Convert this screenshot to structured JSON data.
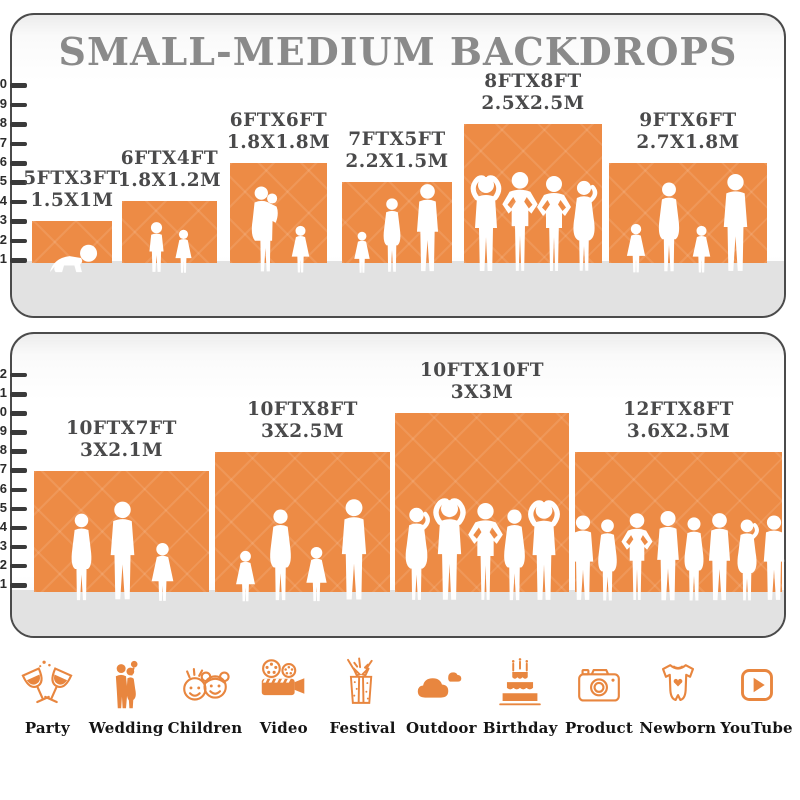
{
  "title": "SMALL-MEDIUM BACKDROPS",
  "colors": {
    "backdrop_orange": "#ED8B45",
    "icon_orange": "#E8863F",
    "title_gray": "#8A8A8A",
    "label_gray": "#4A4A4B",
    "floor_gray": "#E2E2E2",
    "ruler_dark": "#3A3A3A"
  },
  "panels": [
    {
      "name": "small-medium-top",
      "ruler_ticks": [
        "10",
        "9",
        "8",
        "7",
        "6",
        "5",
        "4",
        "3",
        "2",
        "1"
      ],
      "backdrops": [
        {
          "size_ft": "5FTX3FT",
          "size_m": "1.5X1M",
          "width_ft": 5,
          "height_ft": 3,
          "people": [
            "baby"
          ]
        },
        {
          "size_ft": "6FTX4FT",
          "size_m": "1.8X1.2M",
          "width_ft": 6,
          "height_ft": 4,
          "people": [
            "boy",
            "girl"
          ]
        },
        {
          "size_ft": "6FTX6FT",
          "size_m": "1.8X1.8M",
          "width_ft": 6,
          "height_ft": 6,
          "people": [
            "woman_carry",
            "girl"
          ]
        },
        {
          "size_ft": "7FTX5FT",
          "size_m": "2.2X1.5M",
          "width_ft": 7,
          "height_ft": 5,
          "people": [
            "girl",
            "woman",
            "man"
          ]
        },
        {
          "size_ft": "8FTX8FT",
          "size_m": "2.5X2.5M",
          "width_ft": 8,
          "height_ft": 8,
          "people": [
            "man_armsup",
            "man_hips",
            "man_hips",
            "woman_pose"
          ]
        },
        {
          "size_ft": "9FTX6FT",
          "size_m": "2.7X1.8M",
          "width_ft": 9,
          "height_ft": 6,
          "people": [
            "girl",
            "woman",
            "girl",
            "man"
          ]
        }
      ]
    },
    {
      "name": "small-medium-bottom",
      "ruler_ticks": [
        "12",
        "11",
        "10",
        "9",
        "8",
        "7",
        "6",
        "5",
        "4",
        "3",
        "2",
        "1"
      ],
      "backdrops": [
        {
          "size_ft": "10FTX7FT",
          "size_m": "3X2.1M",
          "width_ft": 10,
          "height_ft": 7,
          "people": [
            "woman",
            "man",
            "girl"
          ]
        },
        {
          "size_ft": "10FTX8FT",
          "size_m": "3X2.5M",
          "width_ft": 10,
          "height_ft": 8,
          "people": [
            "girl",
            "woman",
            "girl",
            "man"
          ]
        },
        {
          "size_ft": "10FTX10FT",
          "size_m": "3X3M",
          "width_ft": 10,
          "height_ft": 10,
          "people": [
            "woman_pose",
            "man_armsup",
            "man_hips",
            "woman",
            "man_armsup"
          ]
        },
        {
          "size_ft": "12FTX8FT",
          "size_m": "3.6X2.5M",
          "width_ft": 12,
          "height_ft": 8,
          "people": [
            "man",
            "woman",
            "man_hips",
            "man",
            "woman",
            "man",
            "woman_pose",
            "man"
          ]
        }
      ]
    }
  ],
  "categories": [
    {
      "label": "Party",
      "icon": "party-icon"
    },
    {
      "label": "Wedding",
      "icon": "wedding-icon"
    },
    {
      "label": "Children",
      "icon": "children-icon"
    },
    {
      "label": "Video",
      "icon": "video-icon"
    },
    {
      "label": "Festival",
      "icon": "festival-icon"
    },
    {
      "label": "Outdoor",
      "icon": "outdoor-icon"
    },
    {
      "label": "Birthday",
      "icon": "birthday-icon"
    },
    {
      "label": "Product",
      "icon": "product-icon"
    },
    {
      "label": "Newborn",
      "icon": "newborn-icon"
    },
    {
      "label": "YouTube",
      "icon": "youtube-icon"
    }
  ]
}
